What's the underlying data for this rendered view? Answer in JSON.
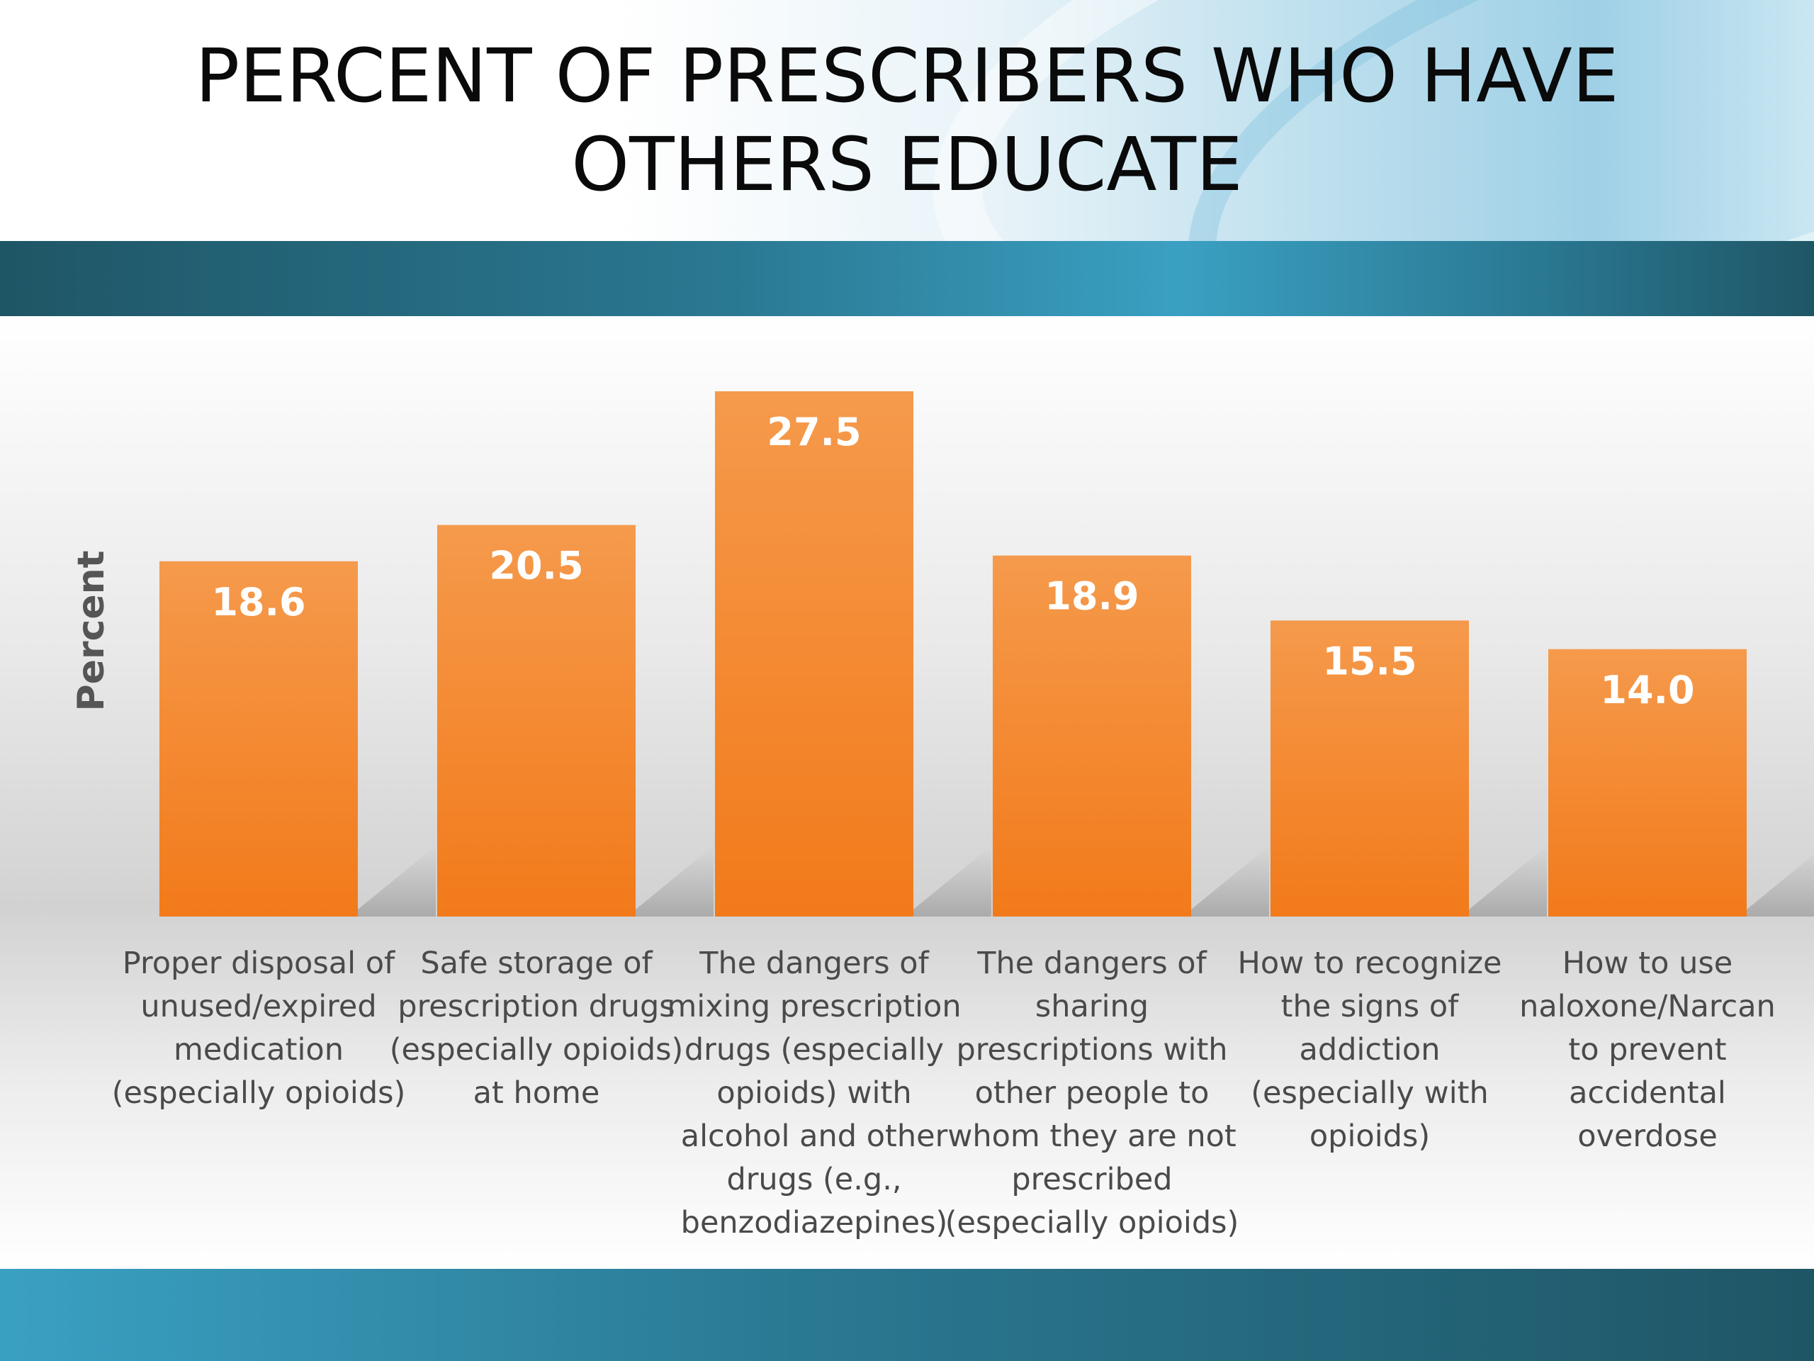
{
  "chart_data": {
    "type": "bar",
    "title": "PERCENT OF PRESCRIBERS WHO HAVE OTHERS EDUCATE",
    "title_lines": [
      "PERCENT OF PRESCRIBERS WHO HAVE",
      "OTHERS EDUCATE"
    ],
    "xlabel": "",
    "ylabel": "Percent",
    "ylim": [
      0,
      27.5
    ],
    "grid": false,
    "legend": "none",
    "bar_color": "#f4842a",
    "categories": [
      [
        "Proper disposal of",
        "unused/expired",
        "medication",
        "(especially opioids)"
      ],
      [
        "Safe storage of",
        "prescription drugs",
        "(especially opioids)",
        "at home"
      ],
      [
        "The dangers of",
        "mixing prescription",
        "drugs (especially",
        "opioids) with",
        "alcohol and other",
        "drugs (e.g.,",
        "benzodiazepines)"
      ],
      [
        "The dangers of",
        "sharing",
        "prescriptions with",
        "other people to",
        "whom they are not",
        "prescribed",
        "(especially opioids)"
      ],
      [
        "How to recognize",
        "the signs of",
        "addiction",
        "(especially with",
        "opioids)"
      ],
      [
        "How to use",
        "naloxone/Narcan",
        "to prevent",
        "accidental",
        "overdose"
      ]
    ],
    "values": [
      18.6,
      20.5,
      27.5,
      18.9,
      15.5,
      14.0
    ],
    "value_labels": [
      "18.6",
      "20.5",
      "27.5",
      "18.9",
      "15.5",
      "14.0"
    ]
  }
}
